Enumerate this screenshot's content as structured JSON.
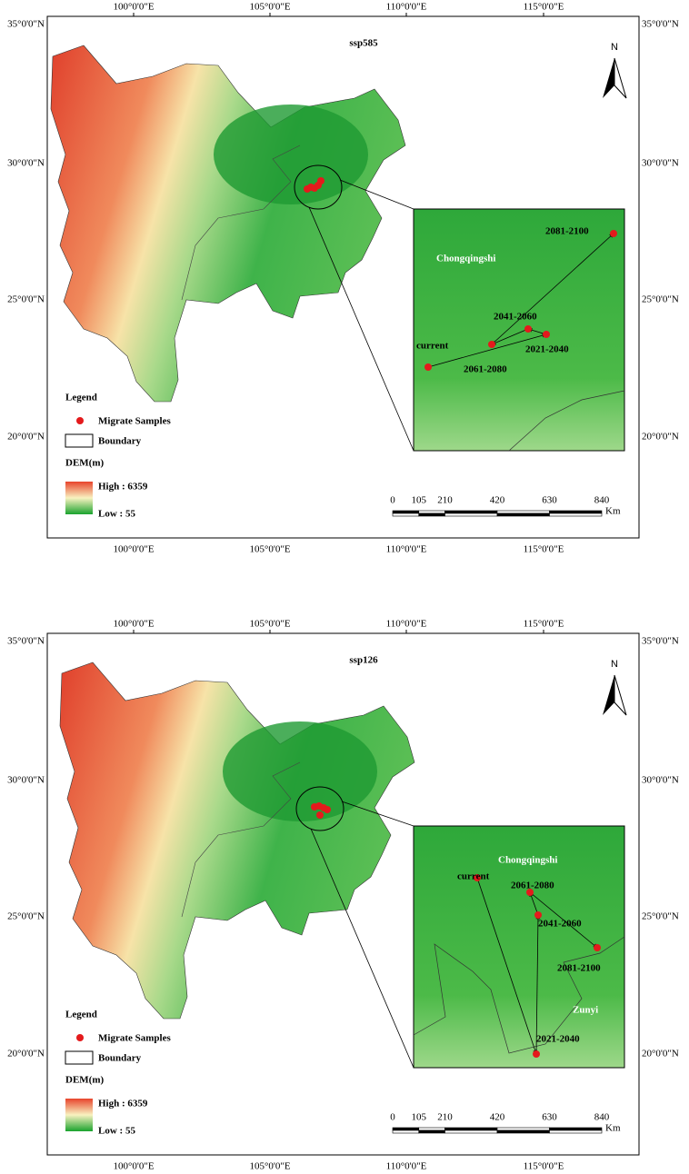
{
  "panels": [
    {
      "title": "ssp585",
      "lon_labels": [
        "100°0'0\"E",
        "105°0'0\"E",
        "110°0'0\"E",
        "115°0'0\"E"
      ],
      "lat_labels": [
        "35°0'0\"N",
        "30°0'0\"N",
        "25°0'0\"N",
        "20°0'0\"N"
      ],
      "north": "N",
      "legend": {
        "title": "Legend",
        "items": [
          "Migrate Samples",
          "Boundary"
        ],
        "dem_title": "DEM(m)",
        "high": "High : 6359",
        "low": "Low : 55"
      },
      "scale": {
        "ticks": [
          0,
          105,
          210,
          420,
          630,
          840
        ],
        "unit": "Km"
      },
      "inset": {
        "places": [
          "Chongqingshi"
        ],
        "points": [
          "current",
          "2021-2040",
          "2041-2060",
          "2061-2080",
          "2081-2100"
        ]
      }
    },
    {
      "title": "ssp126",
      "lon_labels": [
        "100°0'0\"E",
        "105°0'0\"E",
        "110°0'0\"E",
        "115°0'0\"E"
      ],
      "lat_labels": [
        "35°0'0\"N",
        "30°0'0\"N",
        "25°0'0\"N",
        "20°0'0\"N"
      ],
      "north": "N",
      "legend": {
        "title": "Legend",
        "items": [
          "Migrate Samples",
          "Boundary"
        ],
        "dem_title": "DEM(m)",
        "high": "High : 6359",
        "low": "Low : 55"
      },
      "scale": {
        "ticks": [
          0,
          105,
          210,
          420,
          630,
          840
        ],
        "unit": "Km"
      },
      "inset": {
        "places": [
          "Chongqingshi",
          "Zunyi"
        ],
        "points": [
          "current",
          "2021-2040",
          "2041-2060",
          "2061-2080",
          "2081-2100"
        ]
      }
    }
  ]
}
